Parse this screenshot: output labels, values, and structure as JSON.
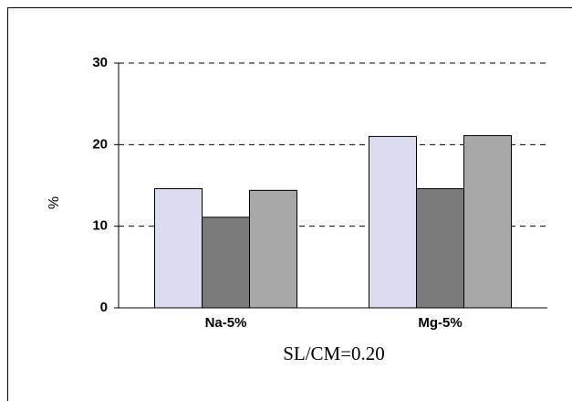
{
  "chart_data": {
    "type": "bar",
    "categories": [
      "Na-5%",
      "Mg-5%"
    ],
    "series": [
      {
        "color": "#dcdcf0",
        "values": [
          14.6,
          21.0
        ]
      },
      {
        "color": "#7a7a7a",
        "values": [
          11.1,
          14.6
        ]
      },
      {
        "color": "#a8a8a8",
        "values": [
          14.4,
          21.1
        ]
      }
    ],
    "ylabel": "%",
    "xlabel": "SL/CM=0.20",
    "ylim": [
      0,
      30
    ],
    "yticks": [
      0,
      10,
      20,
      30
    ],
    "grid": true
  }
}
